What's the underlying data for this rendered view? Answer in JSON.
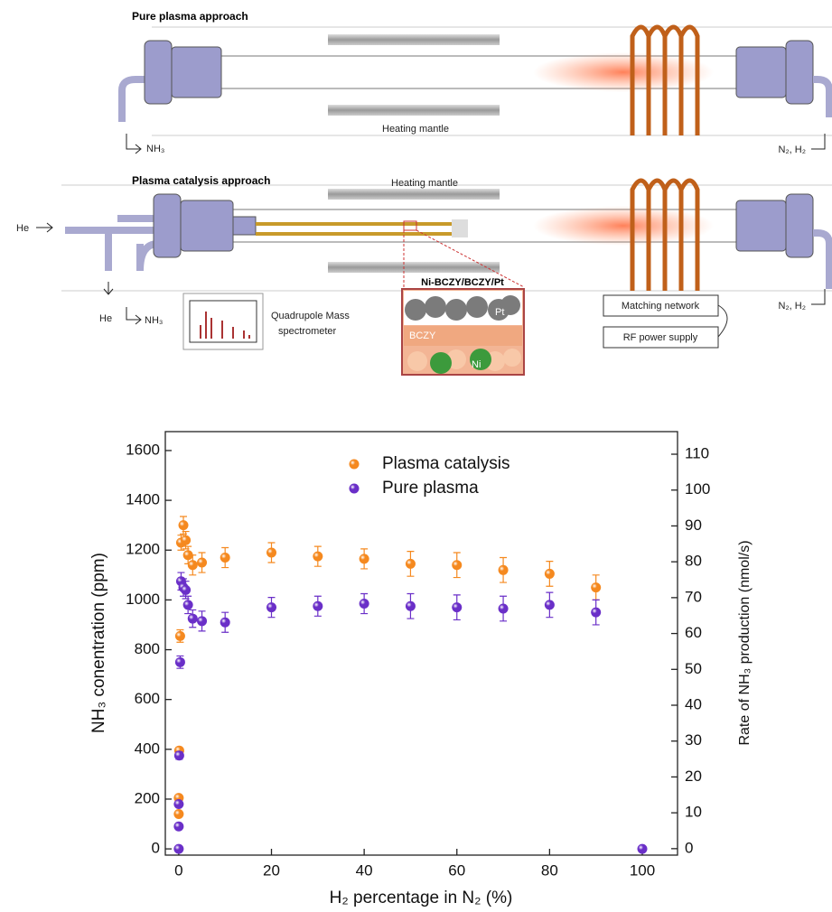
{
  "diagram": {
    "pure_plasma_title": "Pure plasma approach",
    "heating_mantle_top": "Heating mantle",
    "nh3_out_top": "NH₃",
    "feed_top": "N₂, H₂",
    "catalysis_title": "Plasma catalysis approach",
    "heating_mantle_bottom": "Heating mantle",
    "he_in": "He",
    "he_out": "He",
    "he_sweep": "He",
    "nh3_out_bottom": "NH₃",
    "qms": [
      "Quadrupole Mass",
      "spectrometer"
    ],
    "membrane": "Ni-BCZY/BCZY/Pt",
    "pt": "Pt",
    "bczy": "BCZY",
    "ni": "Ni",
    "matching": "Matching network",
    "rf": "RF power supply",
    "feed_bottom": "N₂, H₂"
  },
  "chart_data": {
    "type": "scatter",
    "x_label": "H₂ percentage in N₂ (%)",
    "y_label": "NH₃ conentration (ppm)",
    "y2_label": "Rate of NH₃ production (nmol/s)",
    "xlim": [
      -2.9,
      107.6
    ],
    "xticks": [
      0,
      20,
      40,
      60,
      80,
      100
    ],
    "ylim": [
      -25,
      1676
    ],
    "yticks": [
      0,
      200,
      400,
      600,
      800,
      1000,
      1200,
      1400,
      1600
    ],
    "y2lim": [
      -1.8,
      116.3
    ],
    "y2ticks": [
      0,
      10,
      20,
      30,
      40,
      50,
      60,
      70,
      80,
      90,
      100,
      110
    ],
    "legend": "upper center",
    "series": [
      {
        "name": "Plasma catalysis",
        "color": "#f5891f",
        "x": [
          0,
          0,
          0.1,
          0.3,
          0.5,
          1,
          1.5,
          2,
          3,
          5,
          10,
          20,
          30,
          40,
          50,
          60,
          70,
          80,
          90
        ],
        "values": [
          140,
          205,
          395,
          855,
          1230,
          1300,
          1240,
          1180,
          1140,
          1150,
          1170,
          1190,
          1175,
          1165,
          1145,
          1140,
          1120,
          1105,
          1050
        ],
        "errors": [
          10,
          10,
          10,
          25,
          30,
          35,
          35,
          35,
          40,
          40,
          40,
          40,
          40,
          40,
          50,
          50,
          50,
          50,
          50
        ]
      },
      {
        "name": "Pure plasma",
        "color": "#6a2fc8",
        "x": [
          0,
          0,
          0,
          0.1,
          0.3,
          0.5,
          1,
          1.5,
          2,
          3,
          5,
          10,
          20,
          30,
          40,
          50,
          60,
          70,
          80,
          90,
          100
        ],
        "values": [
          0,
          90,
          180,
          375,
          750,
          1075,
          1050,
          1040,
          980,
          925,
          915,
          910,
          970,
          975,
          985,
          975,
          970,
          965,
          980,
          950,
          0
        ],
        "errors": [
          5,
          5,
          10,
          15,
          25,
          35,
          35,
          35,
          35,
          35,
          40,
          40,
          40,
          40,
          40,
          50,
          50,
          50,
          50,
          50,
          5
        ]
      }
    ]
  }
}
